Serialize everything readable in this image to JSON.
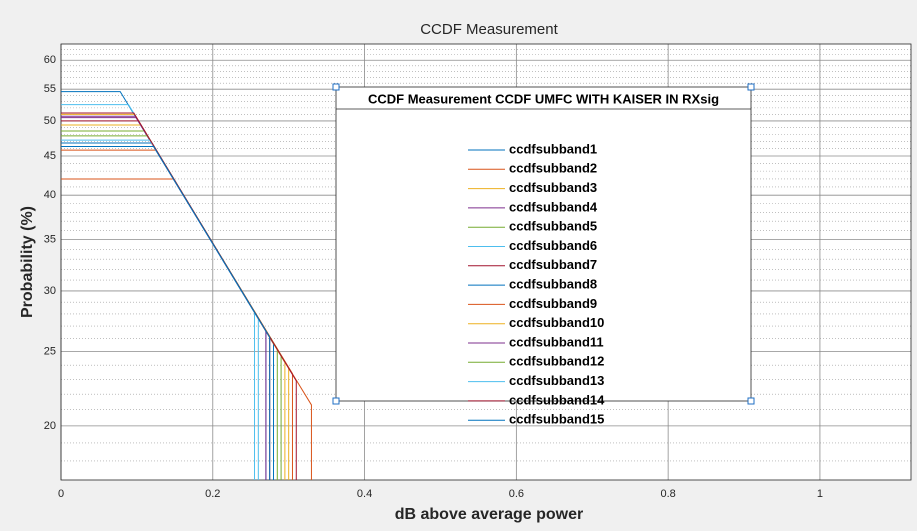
{
  "chart_data": {
    "type": "line",
    "title": "CCDF Measurement",
    "xlabel": "dB above average power",
    "ylabel": "Probability (%)",
    "legend_title": "CCDF Measurement  CCDF UMFC WITH KAISER IN RXsig",
    "xlim": [
      0,
      1.12
    ],
    "xticks": [
      0,
      0.2,
      0.4,
      0.6,
      0.8,
      1
    ],
    "ylim": [
      17,
      63
    ],
    "yticks": [
      20,
      25,
      30,
      35,
      40,
      45,
      50,
      55,
      60
    ],
    "yscale": "log",
    "yminorticks": [
      18,
      19,
      21,
      22,
      23,
      24,
      26,
      27,
      28,
      29,
      31,
      32,
      33,
      34,
      36,
      37,
      38,
      39,
      41,
      42,
      43,
      44,
      46,
      47,
      48,
      49,
      51,
      52,
      53,
      54,
      56,
      57,
      58,
      59,
      61,
      62
    ],
    "grid": true,
    "minor_grid": true,
    "series": [
      {
        "name": "ccdfsubband1",
        "color": "#0072BD",
        "x": [
          0,
          0.078,
          0.27,
          0.27
        ],
        "values": [
          54.6,
          54.6,
          26.6,
          17
        ]
      },
      {
        "name": "ccdfsubband2",
        "color": "#D95319",
        "x": [
          0,
          0.148,
          0.33,
          0.33
        ],
        "values": [
          42,
          42,
          21.3,
          17
        ]
      },
      {
        "name": "ccdfsubband3",
        "color": "#EDB120",
        "x": [
          0,
          0.105,
          0.3,
          0.3
        ],
        "values": [
          49.4,
          49.4,
          23.8,
          17
        ]
      },
      {
        "name": "ccdfsubband4",
        "color": "#7E2F8E",
        "x": [
          0,
          0.099,
          0.28,
          0.28
        ],
        "values": [
          50.5,
          50.5,
          25.6,
          17
        ]
      },
      {
        "name": "ccdfsubband5",
        "color": "#77AC30",
        "x": [
          0,
          0.11,
          0.285,
          0.285
        ],
        "values": [
          48.5,
          48.5,
          25.2,
          17
        ]
      },
      {
        "name": "ccdfsubband6",
        "color": "#4DBEEE",
        "x": [
          0,
          0.089,
          0.255,
          0.255
        ],
        "values": [
          52.5,
          52.5,
          28.2,
          17
        ]
      },
      {
        "name": "ccdfsubband7",
        "color": "#A2142F",
        "x": [
          0,
          0.102,
          0.275,
          0.275
        ],
        "values": [
          50,
          50,
          26.1,
          17
        ]
      },
      {
        "name": "ccdfsubband8",
        "color": "#0072BD",
        "x": [
          0,
          0.12,
          0.28,
          0.28
        ],
        "values": [
          46.8,
          46.8,
          25.6,
          17
        ]
      },
      {
        "name": "ccdfsubband9",
        "color": "#D95319",
        "x": [
          0,
          0.125,
          0.305,
          0.305
        ],
        "values": [
          45.8,
          45.8,
          23.4,
          17
        ]
      },
      {
        "name": "ccdfsubband10",
        "color": "#EDB120",
        "x": [
          0,
          0.097,
          0.295,
          0.295
        ],
        "values": [
          51,
          51,
          24.2,
          17
        ]
      },
      {
        "name": "ccdfsubband11",
        "color": "#7E2F8E",
        "x": [
          0,
          0.098,
          0.27,
          0.27
        ],
        "values": [
          50.7,
          50.7,
          26.6,
          17
        ]
      },
      {
        "name": "ccdfsubband12",
        "color": "#77AC30",
        "x": [
          0,
          0.114,
          0.29,
          0.29
        ],
        "values": [
          47.8,
          47.8,
          24.7,
          17
        ]
      },
      {
        "name": "ccdfsubband13",
        "color": "#4DBEEE",
        "x": [
          0,
          0.117,
          0.26,
          0.26
        ],
        "values": [
          47.2,
          47.2,
          27.6,
          17
        ]
      },
      {
        "name": "ccdfsubband14",
        "color": "#A2142F",
        "x": [
          0,
          0.096,
          0.31,
          0.31
        ],
        "values": [
          51.2,
          51.2,
          22.9,
          17
        ]
      },
      {
        "name": "ccdfsubband15",
        "color": "#0072BD",
        "x": [
          0,
          0.122,
          0.275,
          0.275
        ],
        "values": [
          46.3,
          46.3,
          26.1,
          17
        ]
      }
    ]
  }
}
